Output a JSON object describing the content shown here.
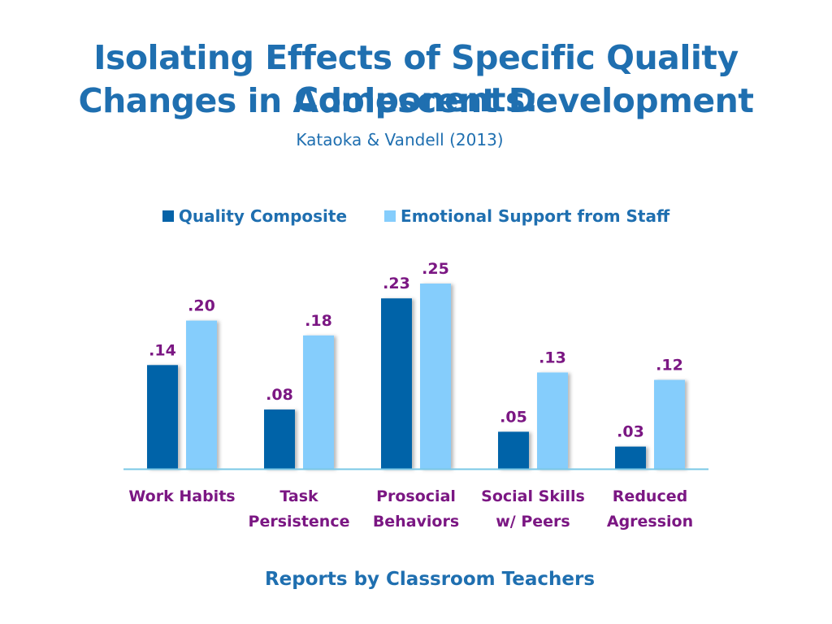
{
  "slide": {
    "title_line1": "Isolating Effects of Specific Quality Components:",
    "title_line2": "Changes in Adolescent Development",
    "citation": "Kataoka & Vandell (2013)",
    "footer": "Reports by Classroom Teachers"
  },
  "colors": {
    "title": "#1f6fb0",
    "series1": "#0563a8",
    "series2": "#85cdfc",
    "data_label": "#7b1783",
    "category_label": "#7b1783",
    "axis": "#7ac8e6"
  },
  "chart_data": {
    "type": "bar",
    "categories": [
      [
        "Work Habits"
      ],
      [
        "Task",
        "Persistence"
      ],
      [
        "Prosocial",
        "Behaviors"
      ],
      [
        "Social Skills",
        "w/ Peers"
      ],
      [
        "Reduced",
        "Agression"
      ]
    ],
    "series": [
      {
        "name": "Quality Composite",
        "values": [
          0.14,
          0.08,
          0.23,
          0.05,
          0.03
        ],
        "labels": [
          ".14",
          ".08",
          ".23",
          ".05",
          ".03"
        ]
      },
      {
        "name": "Emotional Support from Staff",
        "values": [
          0.2,
          0.18,
          0.25,
          0.13,
          0.12
        ],
        "labels": [
          ".20",
          ".18",
          ".25",
          ".13",
          ".12"
        ]
      }
    ],
    "ylim": [
      0,
      0.25
    ],
    "grid": false,
    "legend": "top-center"
  }
}
